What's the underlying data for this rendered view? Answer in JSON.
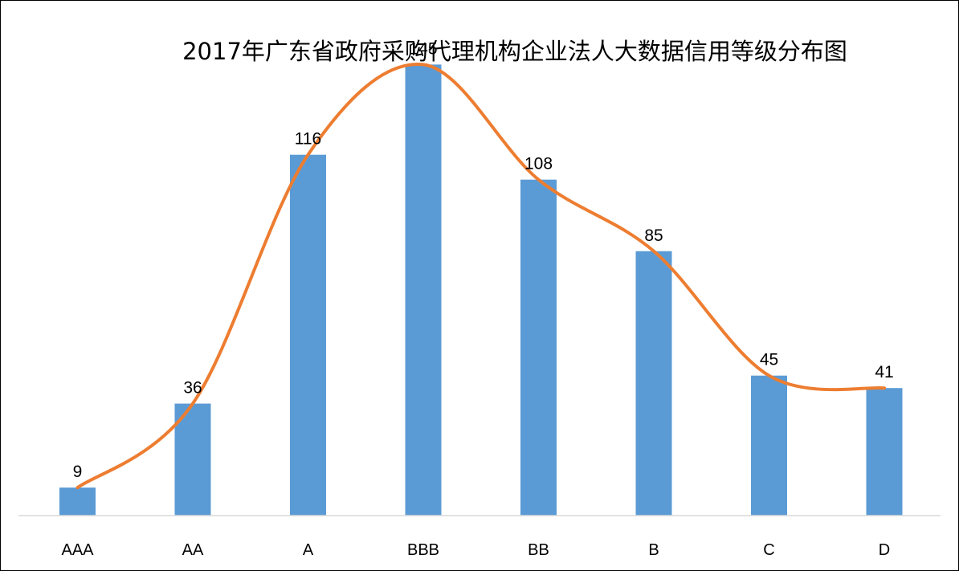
{
  "chart_data": {
    "type": "bar",
    "title": "2017年广东省政府采购代理机构企业法人大数据信用等级分布图",
    "categories": [
      "AAA",
      "AA",
      "A",
      "BBB",
      "BB",
      "B",
      "C",
      "D"
    ],
    "values": [
      9,
      36,
      116,
      145,
      108,
      85,
      45,
      41
    ],
    "overlay": "smoothed-line",
    "xlabel": "",
    "ylabel": "",
    "ylim": [
      0,
      150
    ],
    "grid": false,
    "legend": "none",
    "colors": {
      "bar": "#5B9BD5",
      "line": "#ED7D31",
      "axis": "#D9D9D9"
    }
  }
}
